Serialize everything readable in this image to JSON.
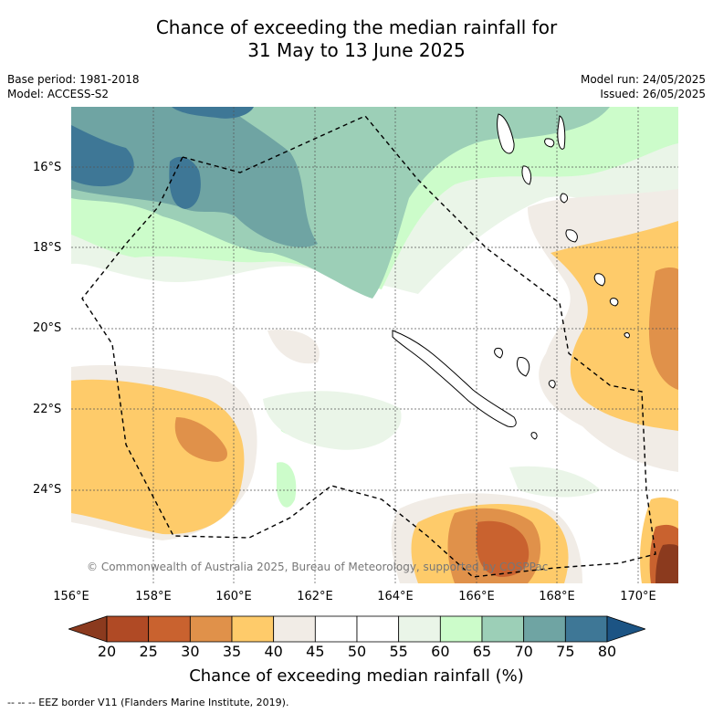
{
  "title_line1": "Chance of exceeding the median rainfall for",
  "title_line2": "31 May to 13 June 2025",
  "base_period": "Base period: 1981-2018",
  "model": "Model: ACCESS-S2",
  "model_run": "Model run: 24/05/2025",
  "issued": "Issued: 26/05/2025",
  "lat_labels": [
    "16°S",
    "18°S",
    "20°S",
    "22°S",
    "24°S"
  ],
  "lon_labels": [
    "156°E",
    "158°E",
    "160°E",
    "162°E",
    "164°E",
    "166°E",
    "168°E",
    "170°E"
  ],
  "copyright": "© Commonwealth of Australia 2025, Bureau of Meteorology, supported by COSPPac",
  "legend": {
    "title": "Chance of exceeding median rainfall (%)",
    "ticks": [
      "20",
      "25",
      "30",
      "35",
      "40",
      "45",
      "50",
      "55",
      "60",
      "65",
      "70",
      "75",
      "80"
    ],
    "colors": [
      "#8b3a1e",
      "#b04a25",
      "#c9622f",
      "#e0914a",
      "#fecb6a",
      "#f1ece6",
      "#ffffff",
      "#ffffff",
      "#eaf5e8",
      "#ccfcca",
      "#9ccfb7",
      "#6fa4a3",
      "#3e7796",
      "#1c5484"
    ]
  },
  "footnote": "--  --  -- EEZ border V11 (Flanders Marine Institute, 2019)."
}
